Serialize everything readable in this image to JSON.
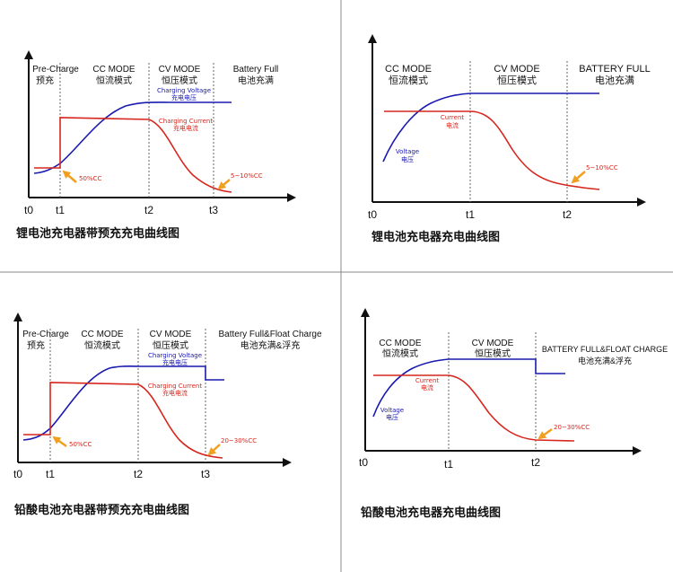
{
  "colors": {
    "voltage": "#1a1ab0",
    "current": "#d6261e",
    "arrow": "#f0a020",
    "divider": "#777777"
  },
  "panels": [
    {
      "stages": [
        {
          "en": "Pre-Charge",
          "zh": "预充"
        },
        {
          "en": "CC MODE",
          "zh": "恒流模式"
        },
        {
          "en": "CV MODE",
          "zh": "恒压模式"
        },
        {
          "en": "Battery Full",
          "zh": "电池充满"
        }
      ],
      "ticks": [
        "t0",
        "t1",
        "t2",
        "t3"
      ],
      "voltage_label": [
        "Charging Voltage",
        "充电电压"
      ],
      "current_label": [
        "Charging Current",
        "充电电流"
      ],
      "note_precharge": "50%CC",
      "note_end": "5~10%CC",
      "caption": "锂电池充电器带预充充电曲线图"
    },
    {
      "stages": [
        {
          "en": "CC MODE",
          "zh": "恒流模式"
        },
        {
          "en": "CV MODE",
          "zh": "恒压模式"
        },
        {
          "en": "BATTERY FULL",
          "zh": "电池充满"
        }
      ],
      "ticks": [
        "t0",
        "t1",
        "t2"
      ],
      "voltage_label": [
        "Voltage",
        "电压"
      ],
      "current_label": [
        "Current",
        "电流"
      ],
      "note_end": "5~10%CC",
      "caption": "锂电池充电器充电曲线图"
    },
    {
      "stages": [
        {
          "en": "Pre-Charge",
          "zh": "预充"
        },
        {
          "en": "CC MODE",
          "zh": "恒流模式"
        },
        {
          "en": "CV MODE",
          "zh": "恒压模式"
        },
        {
          "en": "Battery Full&Float Charge",
          "zh": "电池充满&浮充"
        }
      ],
      "ticks": [
        "t0",
        "t1",
        "t2",
        "t3"
      ],
      "voltage_label": [
        "Charging Voltage",
        "充电电压"
      ],
      "current_label": [
        "Charging Current",
        "充电电流"
      ],
      "note_precharge": "50%CC",
      "note_end": "20~30%CC",
      "caption": "铅酸电池充电器带预充充电曲线图"
    },
    {
      "stages": [
        {
          "en": "CC MODE",
          "zh": "恒流模式"
        },
        {
          "en": "CV MODE",
          "zh": "恒压模式"
        },
        {
          "en": "BATTERY FULL&FLOAT CHARGE",
          "zh": "电池充满&浮充"
        }
      ],
      "ticks": [
        "t0",
        "t1",
        "t2"
      ],
      "voltage_label": [
        "Voltage",
        "电压"
      ],
      "current_label": [
        "Current",
        "电流"
      ],
      "note_end": "20~30%CC",
      "caption": "铅酸电池充电器充电曲线图"
    }
  ]
}
